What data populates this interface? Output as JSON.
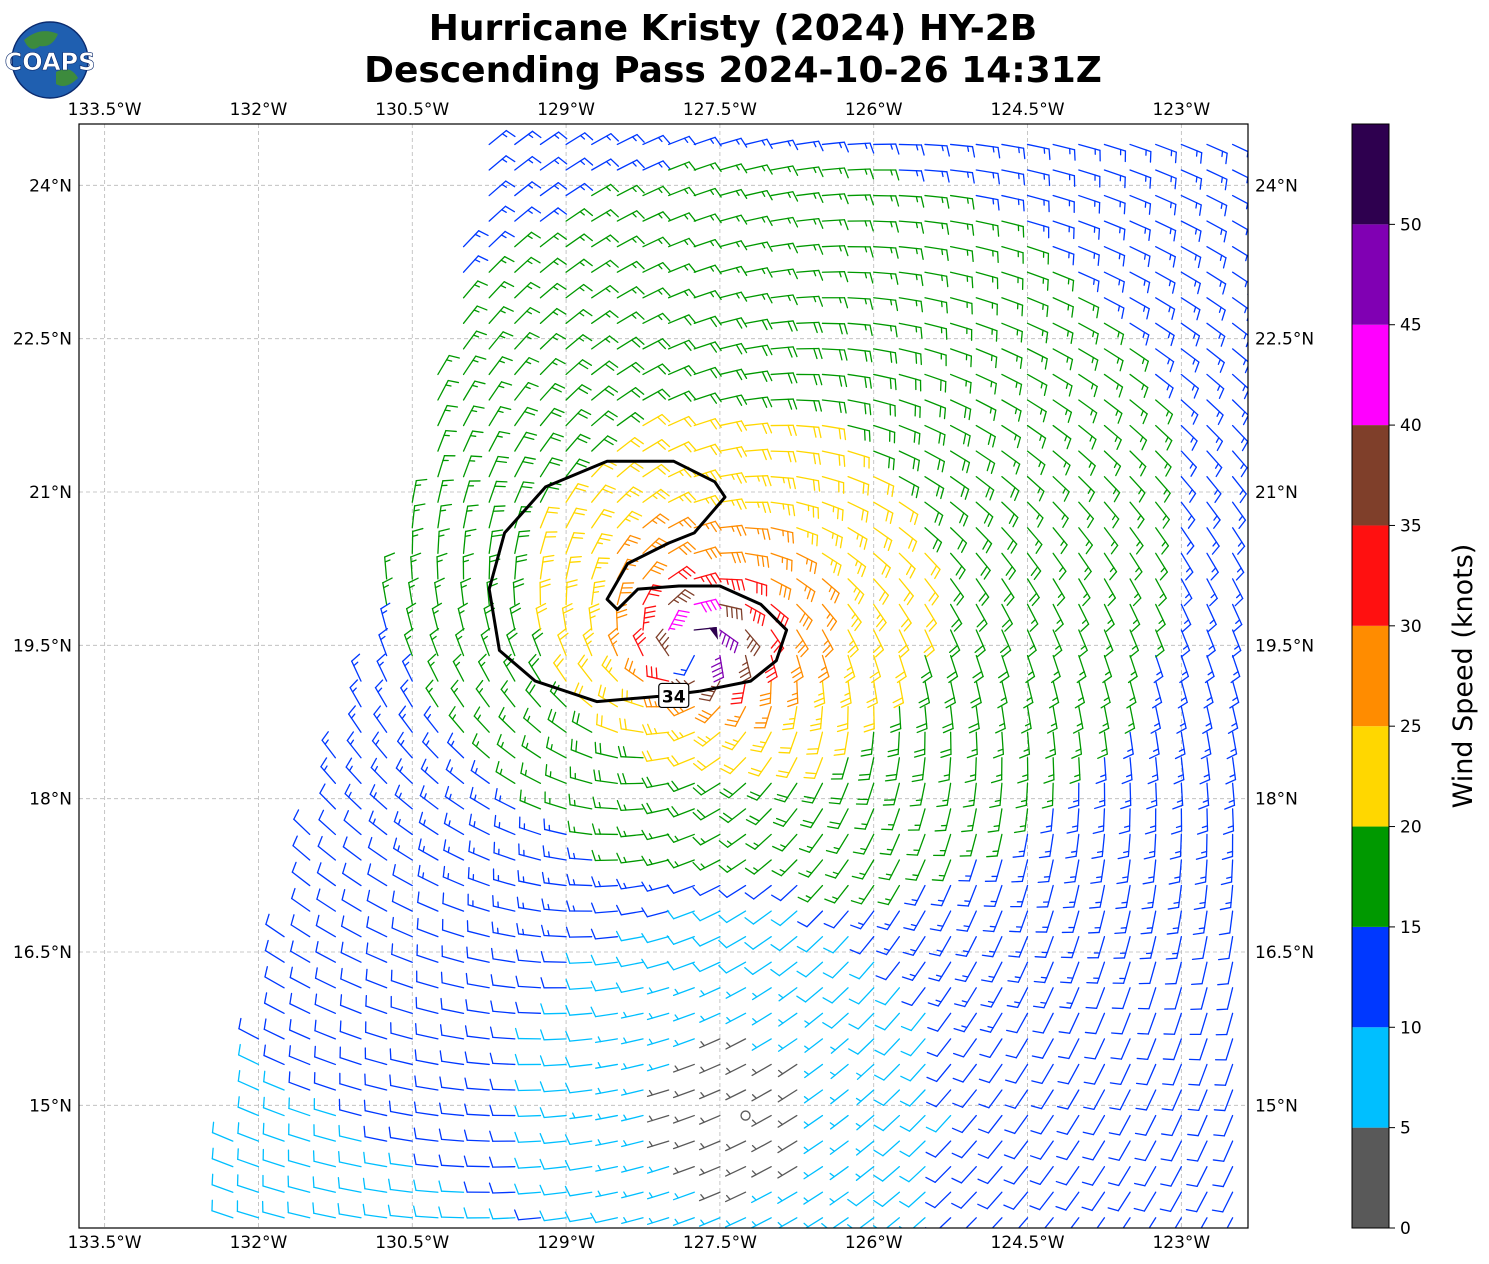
{
  "logo": {
    "text": "COAPS"
  },
  "title": {
    "line1": "Hurricane Kristy (2024) HY-2B",
    "line2": "Descending Pass 2024-10-26 14:31Z"
  },
  "chart_data": {
    "type": "wind_barbs",
    "units": "knots",
    "xaxis": {
      "range": [
        -133.75,
        -122.35
      ],
      "ticks": [
        -133.5,
        -132,
        -130.5,
        -129,
        -127.5,
        -126,
        -124.5,
        -123
      ],
      "tick_labels": [
        "133.5°W",
        "132°W",
        "130.5°W",
        "129°W",
        "127.5°W",
        "126°W",
        "124.5°W",
        "123°W"
      ]
    },
    "yaxis": {
      "range": [
        13.8,
        24.6
      ],
      "ticks": [
        15,
        16.5,
        18,
        19.5,
        21,
        22.5,
        24
      ],
      "tick_labels": [
        "15°N",
        "16.5°N",
        "18°N",
        "19.5°N",
        "21°N",
        "22.5°N",
        "24°N"
      ]
    },
    "grid": true,
    "storm_center": {
      "lon": -127.8,
      "lat": 19.45
    },
    "calm_center": {
      "lon": -127.32,
      "lat": 14.9
    },
    "swath_west_edge": [
      [
        -132.5,
        13.85
      ],
      [
        -131.7,
        17.0
      ],
      [
        -130.5,
        21.0
      ],
      [
        -129.75,
        24.6
      ]
    ],
    "contour": {
      "label": "34",
      "level": 34,
      "path": [
        [
          -127.7,
          19.05
        ],
        [
          -127.2,
          19.15
        ],
        [
          -126.95,
          19.35
        ],
        [
          -126.85,
          19.65
        ],
        [
          -127.1,
          19.9
        ],
        [
          -127.5,
          20.08
        ],
        [
          -127.9,
          20.08
        ],
        [
          -128.3,
          20.05
        ],
        [
          -128.5,
          19.85
        ],
        [
          -128.6,
          19.95
        ],
        [
          -128.4,
          20.3
        ],
        [
          -128.0,
          20.5
        ],
        [
          -127.75,
          20.6
        ],
        [
          -127.45,
          20.95
        ],
        [
          -127.55,
          21.1
        ],
        [
          -127.95,
          21.3
        ],
        [
          -128.6,
          21.3
        ],
        [
          -129.2,
          21.05
        ],
        [
          -129.6,
          20.6
        ],
        [
          -129.75,
          20.05
        ],
        [
          -129.65,
          19.45
        ],
        [
          -129.3,
          19.15
        ],
        [
          -128.7,
          18.95
        ],
        [
          -128.1,
          19.0
        ],
        [
          -127.7,
          19.05
        ]
      ],
      "label_pos": [
        -127.95,
        19.0
      ]
    },
    "colorbar": {
      "title": "Wind Speed (knots)",
      "bounds": [
        0,
        5,
        10,
        15,
        20,
        25,
        30,
        35,
        40,
        45,
        50,
        55
      ],
      "tick_labels": [
        "0",
        "5",
        "10",
        "15",
        "20",
        "25",
        "30",
        "35",
        "40",
        "45",
        "50"
      ],
      "colors": [
        "#595959",
        "#00bfff",
        "#0038ff",
        "#009900",
        "#ffd700",
        "#ff8c00",
        "#ff1010",
        "#7f3f2a",
        "#ff00ff",
        "#8000b3",
        "#2e004f"
      ]
    }
  }
}
